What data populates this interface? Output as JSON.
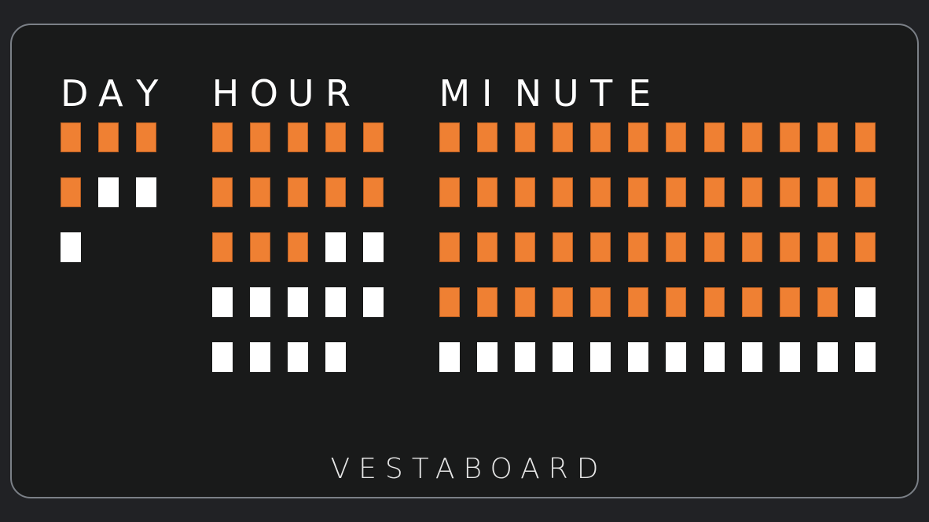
{
  "board": {
    "colors": {
      "orange": "#ef8033",
      "white": "#ffffff",
      "background": "#191a1a"
    },
    "rows": [
      [
        "D",
        "A",
        "Y",
        "",
        "H",
        "O",
        "U",
        "R",
        "",
        "",
        "M",
        "I",
        "N",
        "U",
        "T",
        "E",
        "",
        "",
        "",
        "",
        "",
        ""
      ],
      [
        "orange",
        "orange",
        "orange",
        "",
        "orange",
        "orange",
        "orange",
        "orange",
        "orange",
        "",
        "orange",
        "orange",
        "orange",
        "orange",
        "orange",
        "orange",
        "orange",
        "orange",
        "orange",
        "orange",
        "orange",
        "orange"
      ],
      [
        "orange",
        "white",
        "white",
        "",
        "orange",
        "orange",
        "orange",
        "orange",
        "orange",
        "",
        "orange",
        "orange",
        "orange",
        "orange",
        "orange",
        "orange",
        "orange",
        "orange",
        "orange",
        "orange",
        "orange",
        "orange"
      ],
      [
        "white",
        "",
        "",
        "",
        "orange",
        "orange",
        "orange",
        "white",
        "white",
        "",
        "orange",
        "orange",
        "orange",
        "orange",
        "orange",
        "orange",
        "orange",
        "orange",
        "orange",
        "orange",
        "orange",
        "orange"
      ],
      [
        "",
        "",
        "",
        "",
        "white",
        "white",
        "white",
        "white",
        "white",
        "",
        "orange",
        "orange",
        "orange",
        "orange",
        "orange",
        "orange",
        "orange",
        "orange",
        "orange",
        "orange",
        "orange",
        "white"
      ],
      [
        "",
        "",
        "",
        "",
        "white",
        "white",
        "white",
        "white",
        "",
        "",
        "white",
        "white",
        "white",
        "white",
        "white",
        "white",
        "white",
        "white",
        "white",
        "white",
        "white",
        "white"
      ]
    ]
  },
  "brand": "VESTABOARD"
}
